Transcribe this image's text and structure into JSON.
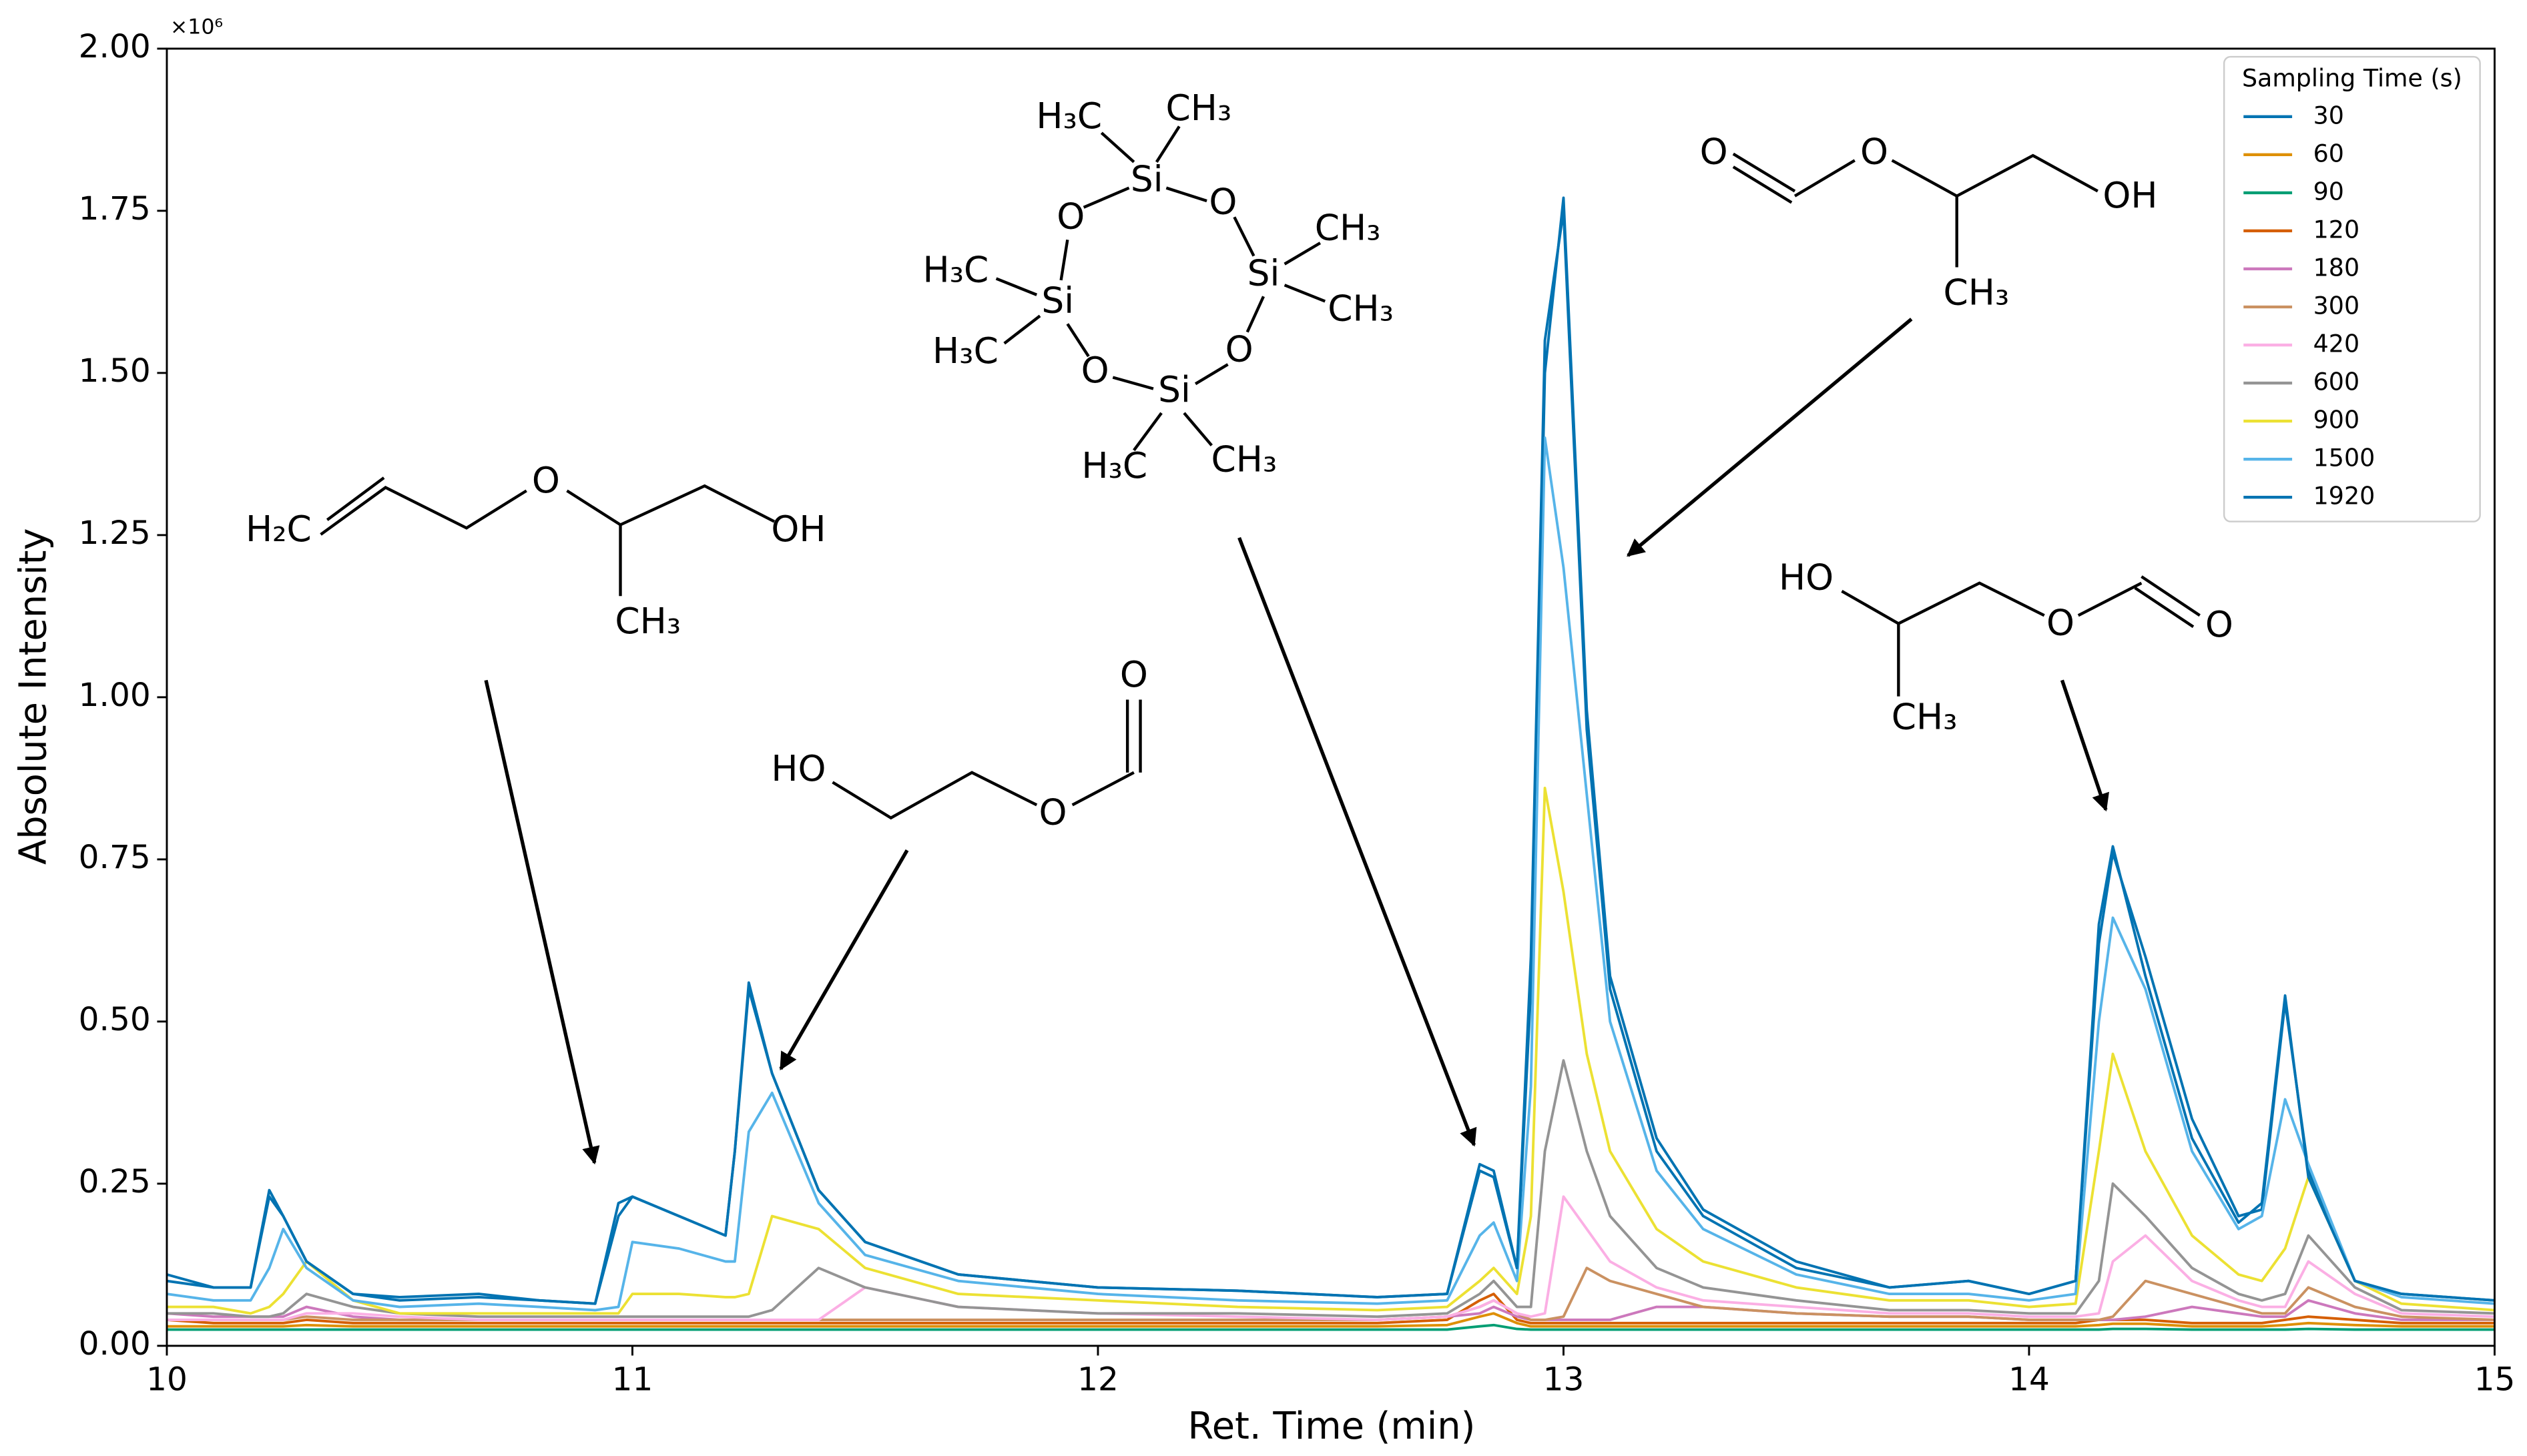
{
  "chart_data": {
    "type": "line",
    "x_label": "Ret. Time (min)",
    "y_label": "Absolute Intensity",
    "y_offset_label": "×10⁶",
    "legend_title": "Sampling Time (s)",
    "legend_position": "upper right",
    "xlim": [
      10,
      15
    ],
    "xticks": [
      10,
      11,
      12,
      13,
      14,
      15
    ],
    "ylim": [
      0,
      2
    ],
    "yticks": [
      {
        "value": 0,
        "label": "0.00"
      },
      {
        "value": 0.25,
        "label": "0.25"
      },
      {
        "value": 0.5,
        "label": "0.50"
      },
      {
        "value": 0.75,
        "label": "0.75"
      },
      {
        "value": 1,
        "label": "1.00"
      },
      {
        "value": 1.25,
        "label": "1.25"
      },
      {
        "value": 1.5,
        "label": "1.50"
      },
      {
        "value": 1.75,
        "label": "1.75"
      },
      {
        "value": 2,
        "label": "2.00"
      }
    ],
    "x": [
      10.0,
      10.1,
      10.18,
      10.22,
      10.25,
      10.3,
      10.4,
      10.5,
      10.67,
      10.8,
      10.92,
      10.97,
      11.0,
      11.1,
      11.2,
      11.22,
      11.25,
      11.3,
      11.4,
      11.5,
      11.7,
      12.0,
      12.3,
      12.6,
      12.75,
      12.82,
      12.85,
      12.9,
      12.93,
      12.96,
      13.0,
      13.05,
      13.1,
      13.2,
      13.3,
      13.5,
      13.7,
      13.87,
      14.0,
      14.1,
      14.15,
      14.18,
      14.25,
      14.35,
      14.45,
      14.5,
      14.55,
      14.6,
      14.7,
      14.8,
      15.0
    ],
    "series": [
      {
        "name": "30",
        "color": "#0173b2",
        "values": [
          0.11,
          0.09,
          0.09,
          0.23,
          0.2,
          0.13,
          0.08,
          0.07,
          0.075,
          0.07,
          0.065,
          0.2,
          0.23,
          0.2,
          0.17,
          0.3,
          0.55,
          0.42,
          0.24,
          0.16,
          0.11,
          0.09,
          0.085,
          0.075,
          0.08,
          0.27,
          0.26,
          0.12,
          0.55,
          1.5,
          1.77,
          0.98,
          0.57,
          0.32,
          0.21,
          0.13,
          0.09,
          0.1,
          0.08,
          0.1,
          0.62,
          0.76,
          0.6,
          0.35,
          0.2,
          0.21,
          0.53,
          0.27,
          0.1,
          0.08,
          0.07
        ]
      },
      {
        "name": "60",
        "color": "#de8f05",
        "values": [
          0.03,
          0.03,
          0.03,
          0.03,
          0.03,
          0.032,
          0.03,
          0.03,
          0.03,
          0.03,
          0.03,
          0.03,
          0.03,
          0.03,
          0.03,
          0.03,
          0.03,
          0.03,
          0.03,
          0.03,
          0.03,
          0.03,
          0.03,
          0.03,
          0.032,
          0.045,
          0.05,
          0.035,
          0.03,
          0.03,
          0.03,
          0.03,
          0.03,
          0.03,
          0.03,
          0.03,
          0.03,
          0.03,
          0.03,
          0.03,
          0.032,
          0.034,
          0.034,
          0.03,
          0.03,
          0.03,
          0.032,
          0.035,
          0.032,
          0.03,
          0.03
        ]
      },
      {
        "name": "90",
        "color": "#029e73",
        "values": [
          0.025,
          0.025,
          0.025,
          0.025,
          0.025,
          0.025,
          0.025,
          0.025,
          0.025,
          0.025,
          0.025,
          0.025,
          0.025,
          0.025,
          0.025,
          0.025,
          0.025,
          0.025,
          0.025,
          0.025,
          0.025,
          0.025,
          0.025,
          0.025,
          0.025,
          0.03,
          0.032,
          0.026,
          0.025,
          0.025,
          0.025,
          0.025,
          0.025,
          0.025,
          0.025,
          0.025,
          0.025,
          0.025,
          0.025,
          0.025,
          0.025,
          0.026,
          0.026,
          0.025,
          0.025,
          0.025,
          0.025,
          0.026,
          0.025,
          0.025,
          0.025
        ]
      },
      {
        "name": "120",
        "color": "#d55e00",
        "values": [
          0.04,
          0.035,
          0.035,
          0.035,
          0.035,
          0.04,
          0.035,
          0.035,
          0.035,
          0.035,
          0.035,
          0.035,
          0.035,
          0.035,
          0.035,
          0.035,
          0.035,
          0.035,
          0.035,
          0.035,
          0.035,
          0.035,
          0.035,
          0.035,
          0.04,
          0.07,
          0.08,
          0.04,
          0.035,
          0.035,
          0.035,
          0.035,
          0.035,
          0.035,
          0.035,
          0.035,
          0.035,
          0.035,
          0.035,
          0.035,
          0.04,
          0.04,
          0.04,
          0.035,
          0.035,
          0.035,
          0.04,
          0.045,
          0.04,
          0.035,
          0.035
        ]
      },
      {
        "name": "180",
        "color": "#cc78bc",
        "values": [
          0.05,
          0.045,
          0.045,
          0.045,
          0.045,
          0.06,
          0.045,
          0.04,
          0.04,
          0.04,
          0.04,
          0.04,
          0.04,
          0.04,
          0.04,
          0.04,
          0.04,
          0.04,
          0.04,
          0.04,
          0.04,
          0.04,
          0.04,
          0.04,
          0.045,
          0.05,
          0.06,
          0.045,
          0.04,
          0.04,
          0.04,
          0.04,
          0.04,
          0.06,
          0.06,
          0.05,
          0.045,
          0.045,
          0.04,
          0.04,
          0.04,
          0.04,
          0.045,
          0.06,
          0.05,
          0.045,
          0.045,
          0.07,
          0.05,
          0.04,
          0.04
        ]
      },
      {
        "name": "300",
        "color": "#ca9161",
        "values": [
          0.04,
          0.04,
          0.04,
          0.04,
          0.04,
          0.045,
          0.04,
          0.04,
          0.04,
          0.04,
          0.04,
          0.04,
          0.04,
          0.04,
          0.04,
          0.04,
          0.04,
          0.04,
          0.04,
          0.04,
          0.04,
          0.04,
          0.04,
          0.04,
          0.045,
          0.06,
          0.07,
          0.05,
          0.04,
          0.04,
          0.045,
          0.12,
          0.1,
          0.08,
          0.06,
          0.05,
          0.045,
          0.045,
          0.04,
          0.04,
          0.04,
          0.045,
          0.1,
          0.08,
          0.06,
          0.05,
          0.05,
          0.09,
          0.06,
          0.045,
          0.04
        ]
      },
      {
        "name": "420",
        "color": "#fbafe4",
        "values": [
          0.04,
          0.04,
          0.04,
          0.04,
          0.04,
          0.05,
          0.05,
          0.045,
          0.04,
          0.04,
          0.04,
          0.04,
          0.04,
          0.04,
          0.04,
          0.04,
          0.04,
          0.04,
          0.04,
          0.09,
          0.06,
          0.05,
          0.045,
          0.04,
          0.045,
          0.06,
          0.07,
          0.05,
          0.045,
          0.05,
          0.23,
          0.18,
          0.13,
          0.09,
          0.07,
          0.06,
          0.05,
          0.05,
          0.045,
          0.045,
          0.05,
          0.13,
          0.17,
          0.1,
          0.07,
          0.06,
          0.06,
          0.13,
          0.08,
          0.05,
          0.045
        ]
      },
      {
        "name": "600",
        "color": "#949494",
        "values": [
          0.05,
          0.05,
          0.045,
          0.045,
          0.05,
          0.08,
          0.06,
          0.05,
          0.045,
          0.045,
          0.045,
          0.045,
          0.045,
          0.045,
          0.045,
          0.045,
          0.045,
          0.055,
          0.12,
          0.09,
          0.06,
          0.05,
          0.05,
          0.045,
          0.05,
          0.08,
          0.1,
          0.06,
          0.06,
          0.3,
          0.44,
          0.3,
          0.2,
          0.12,
          0.09,
          0.07,
          0.055,
          0.055,
          0.05,
          0.05,
          0.1,
          0.25,
          0.2,
          0.12,
          0.08,
          0.07,
          0.08,
          0.17,
          0.09,
          0.055,
          0.05
        ]
      },
      {
        "name": "900",
        "color": "#ece133",
        "values": [
          0.06,
          0.06,
          0.05,
          0.06,
          0.08,
          0.13,
          0.07,
          0.05,
          0.05,
          0.05,
          0.05,
          0.05,
          0.08,
          0.08,
          0.075,
          0.075,
          0.08,
          0.2,
          0.18,
          0.12,
          0.08,
          0.07,
          0.06,
          0.055,
          0.06,
          0.1,
          0.12,
          0.08,
          0.2,
          0.86,
          0.7,
          0.45,
          0.3,
          0.18,
          0.13,
          0.09,
          0.07,
          0.07,
          0.06,
          0.065,
          0.3,
          0.45,
          0.3,
          0.17,
          0.11,
          0.1,
          0.15,
          0.26,
          0.1,
          0.065,
          0.055
        ]
      },
      {
        "name": "1500",
        "color": "#56b4e9",
        "values": [
          0.08,
          0.07,
          0.07,
          0.12,
          0.18,
          0.12,
          0.07,
          0.06,
          0.065,
          0.06,
          0.055,
          0.06,
          0.16,
          0.15,
          0.13,
          0.13,
          0.33,
          0.39,
          0.22,
          0.14,
          0.1,
          0.08,
          0.07,
          0.065,
          0.07,
          0.17,
          0.19,
          0.1,
          0.4,
          1.4,
          1.2,
          0.85,
          0.5,
          0.27,
          0.18,
          0.11,
          0.08,
          0.08,
          0.07,
          0.08,
          0.5,
          0.66,
          0.55,
          0.3,
          0.18,
          0.2,
          0.38,
          0.28,
          0.1,
          0.075,
          0.065
        ]
      },
      {
        "name": "1920",
        "color": "#0173b2",
        "values": [
          0.1,
          0.09,
          0.09,
          0.24,
          0.2,
          0.13,
          0.08,
          0.075,
          0.08,
          0.07,
          0.065,
          0.22,
          0.23,
          0.2,
          0.17,
          0.3,
          0.56,
          0.42,
          0.24,
          0.16,
          0.11,
          0.09,
          0.085,
          0.075,
          0.08,
          0.28,
          0.27,
          0.12,
          0.6,
          1.55,
          1.75,
          0.95,
          0.55,
          0.3,
          0.2,
          0.12,
          0.09,
          0.1,
          0.08,
          0.1,
          0.65,
          0.77,
          0.57,
          0.32,
          0.19,
          0.22,
          0.54,
          0.26,
          0.1,
          0.08,
          0.07
        ]
      }
    ],
    "molecules": [
      {
        "labels": [
          "H₂C",
          "O",
          "OH",
          "CH₃"
        ]
      },
      {
        "labels": [
          "HO",
          "O",
          "O"
        ]
      },
      {
        "labels": [
          "Si",
          "Si",
          "Si",
          "Si",
          "O",
          "O",
          "O",
          "O",
          "H₃C",
          "CH₃",
          "CH₃",
          "CH₃",
          "CH₃",
          "H₃C",
          "H₃C",
          "H₃C"
        ]
      },
      {
        "labels": [
          "O",
          "O",
          "OH",
          "CH₃"
        ]
      },
      {
        "labels": [
          "HO",
          "O",
          "O",
          "CH₃"
        ]
      }
    ]
  }
}
